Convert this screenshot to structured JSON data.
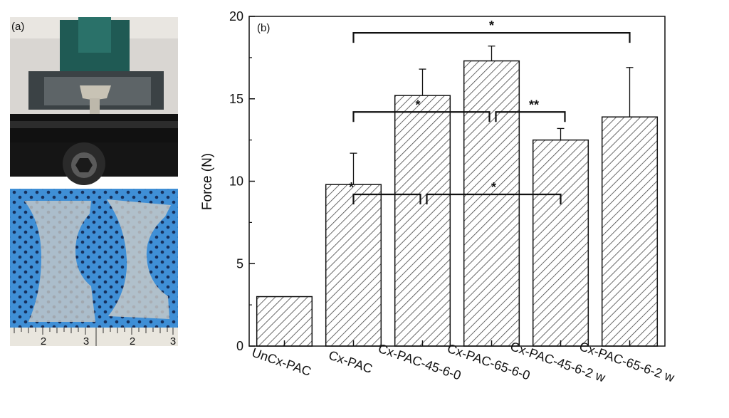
{
  "panel_a_label": "(a)",
  "panel_b_label": "(b)",
  "ruler_labels": [
    "2",
    "3",
    "2",
    "3"
  ],
  "chart_data": {
    "type": "bar",
    "categories": [
      "UnCx-PAC",
      "Cx-PAC",
      "Cx-PAC-45-6-0",
      "Cx-PAC-65-6-0",
      "Cx-PAC-45-6-2 w",
      "Cx-PAC-65-6-2 w"
    ],
    "values": [
      3.0,
      9.8,
      15.2,
      17.3,
      12.5,
      13.9
    ],
    "errors": [
      null,
      1.9,
      1.6,
      0.9,
      0.7,
      3.0
    ],
    "ylabel": "Force (N)",
    "xlabel": "",
    "ylim": [
      0,
      20
    ],
    "yticks": [
      "0",
      "5",
      "10",
      "15",
      "20"
    ],
    "bar_fill": "hatched",
    "significance": [
      {
        "from": 1,
        "to": 5,
        "level": 19.0,
        "label": "*"
      },
      {
        "from": 1,
        "to": 3,
        "level": 14.2,
        "label": "*"
      },
      {
        "from": 3,
        "to": 4,
        "level": 14.2,
        "label": "**"
      },
      {
        "from": 1,
        "to": 2,
        "level": 9.2,
        "label": "*"
      },
      {
        "from": 2,
        "to": 4,
        "level": 9.2,
        "label": "*"
      }
    ]
  }
}
